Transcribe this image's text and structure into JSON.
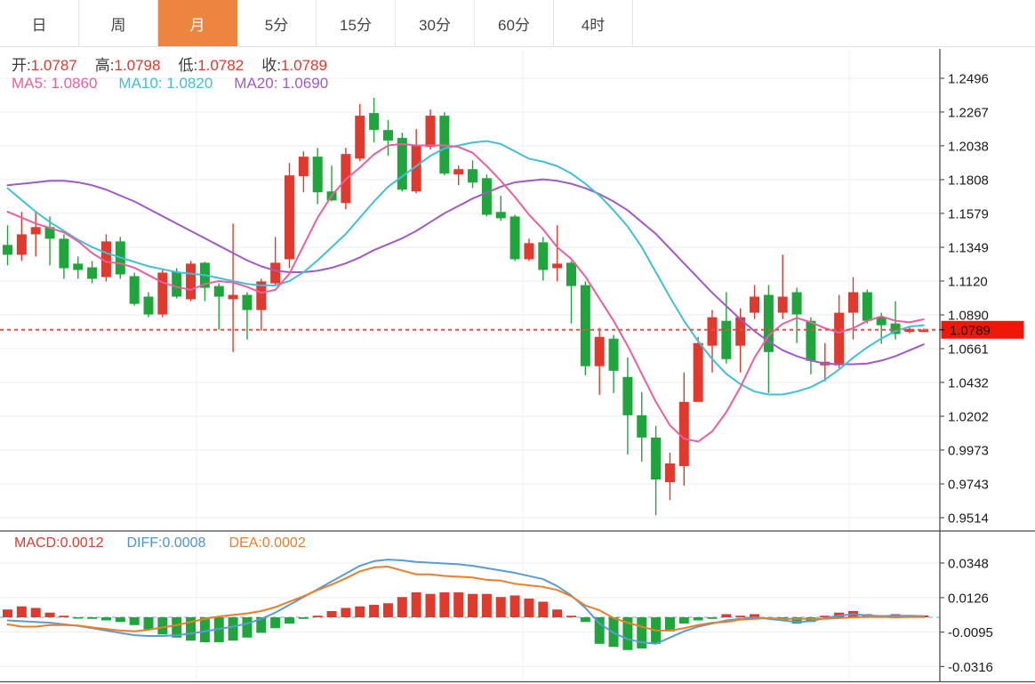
{
  "tabs": {
    "items": [
      {
        "key": "day",
        "label": "日",
        "active": false
      },
      {
        "key": "week",
        "label": "周",
        "active": false
      },
      {
        "key": "month",
        "label": "月",
        "active": true
      },
      {
        "key": "5min",
        "label": "5分",
        "active": false
      },
      {
        "key": "15min",
        "label": "15分",
        "active": false
      },
      {
        "key": "30min",
        "label": "30分",
        "active": false
      },
      {
        "key": "60min",
        "label": "60分",
        "active": false
      },
      {
        "key": "4hour",
        "label": "4时",
        "active": false
      }
    ]
  },
  "legend": {
    "open_label": "开:",
    "open_value": "1.0787",
    "high_label": "高:",
    "high_value": "1.0798",
    "low_label": "低:",
    "low_value": "1.0782",
    "close_label": "收:",
    "close_value": "1.0789",
    "ma5_label": "MA5:",
    "ma5_value": "1.0860",
    "ma10_label": "MA10:",
    "ma10_value": "1.0820",
    "ma20_label": "MA20:",
    "ma20_value": "1.0690"
  },
  "macd_legend": {
    "macd_label": "MACD:",
    "macd_value": "0.0012",
    "diff_label": "DIFF:",
    "diff_value": "0.0008",
    "dea_label": "DEA:",
    "dea_value": "0.0002"
  },
  "colors": {
    "up": "#e0392d",
    "down": "#1fa53c",
    "ma5": "#ec5f9d",
    "ma10": "#3fc0d8",
    "ma20": "#a15ac6",
    "diff": "#5b9bd5",
    "dea": "#ee7d28",
    "grid": "#e9eef5",
    "vgrid": "#eef1f6",
    "axis": "#474b52",
    "tick": "#555555",
    "label": "#1b1b1b",
    "price_dotted": "#ea5045",
    "zero_dashed": "#9dc3e6",
    "price_tag_bg": "#ee1808",
    "price_tag_text": "#111111",
    "tab_active_bg": "#ec8540"
  },
  "chart_data": {
    "type": "candlestick+macd",
    "title": "",
    "price_panel": {
      "ylim": [
        0.9514,
        1.2496
      ],
      "y_ticks": [
        "1.2496",
        "1.2267",
        "1.2038",
        "1.1808",
        "1.1579",
        "1.1349",
        "1.1120",
        "1.0890",
        "1.0661",
        "1.0432",
        "1.0202",
        "0.9973",
        "0.9743",
        "0.9514"
      ],
      "last_price": "1.0789",
      "grid": true,
      "legend_position": "top-left",
      "candles": [
        [
          1.1365,
          1.1498,
          1.1226,
          1.1298
        ],
        [
          1.1298,
          1.1589,
          1.1256,
          1.1437
        ],
        [
          1.1437,
          1.1589,
          1.1286,
          1.1486
        ],
        [
          1.1486,
          1.1558,
          1.1226,
          1.1407
        ],
        [
          1.1407,
          1.1437,
          1.1135,
          1.1207
        ],
        [
          1.1238,
          1.1286,
          1.1135,
          1.1195
        ],
        [
          1.1213,
          1.1256,
          1.1104,
          1.1135
        ],
        [
          1.1147,
          1.1437,
          1.1117,
          1.1389
        ],
        [
          1.1389,
          1.1419,
          1.1135,
          1.1165
        ],
        [
          1.1153,
          1.1177,
          1.0953,
          1.0965
        ],
        [
          1.1014,
          1.1044,
          1.0874,
          1.0893
        ],
        [
          1.0893,
          1.1195,
          1.0874,
          1.1177
        ],
        [
          1.1183,
          1.1207,
          1.1002,
          1.1014
        ],
        [
          1.0996,
          1.1256,
          1.0983,
          1.1238
        ],
        [
          1.1244,
          1.125,
          1.0983,
          1.1074
        ],
        [
          1.1086,
          1.1104,
          1.079,
          1.1014
        ],
        [
          1.0996,
          1.151,
          1.0638,
          1.1026
        ],
        [
          1.1026,
          1.1044,
          1.0723,
          1.0923
        ],
        [
          1.0923,
          1.1135,
          1.0784,
          1.1117
        ],
        [
          1.1104,
          1.1419,
          1.1092,
          1.1244
        ],
        [
          1.1268,
          1.1921,
          1.1207,
          1.1837
        ],
        [
          1.1831,
          1.2,
          1.1722,
          1.1964
        ],
        [
          1.1964,
          1.2024,
          1.1643,
          1.1722
        ],
        [
          1.1728,
          1.1903,
          1.1661,
          1.1667
        ],
        [
          1.1649,
          1.2024,
          1.1607,
          1.1982
        ],
        [
          1.1951,
          1.2321,
          1.1933,
          1.2242
        ],
        [
          1.226,
          1.2363,
          1.206,
          1.2145
        ],
        [
          1.2145,
          1.2212,
          1.197,
          1.2073
        ],
        [
          1.2091,
          1.2127,
          1.1728,
          1.174
        ],
        [
          1.1728,
          1.2151,
          1.1716,
          1.2042
        ],
        [
          1.203,
          1.2284,
          1.2012,
          1.2242
        ],
        [
          1.2242,
          1.2266,
          1.1837,
          1.1849
        ],
        [
          1.1843,
          1.1903,
          1.177,
          1.1879
        ],
        [
          1.1879,
          1.1939,
          1.1752,
          1.1788
        ],
        [
          1.1818,
          1.1843,
          1.1558,
          1.157
        ],
        [
          1.1589,
          1.1698,
          1.1528,
          1.1546
        ],
        [
          1.1558,
          1.157,
          1.1256,
          1.1268
        ],
        [
          1.1268,
          1.1407,
          1.1256,
          1.1377
        ],
        [
          1.1383,
          1.1419,
          1.1123,
          1.1195
        ],
        [
          1.1207,
          1.1498,
          1.1117,
          1.1238
        ],
        [
          1.1244,
          1.1256,
          1.0832,
          1.1086
        ],
        [
          1.1092,
          1.1117,
          1.0481,
          1.0542
        ],
        [
          1.0542,
          1.0802,
          1.0348,
          1.0741
        ],
        [
          1.0729,
          1.0754,
          1.036,
          1.0511
        ],
        [
          1.0469,
          1.0602,
          0.9943,
          1.0209
        ],
        [
          1.0209,
          1.0366,
          0.9894,
          1.0058
        ],
        [
          1.0058,
          1.0136,
          0.9531,
          0.9773
        ],
        [
          0.9755,
          0.9955,
          0.9634,
          0.9882
        ],
        [
          0.9864,
          1.0499,
          0.9731,
          1.03
        ],
        [
          1.03,
          1.0741,
          1.0336,
          1.0699
        ],
        [
          1.0681,
          1.0923,
          1.0499,
          1.0874
        ],
        [
          1.085,
          1.1044,
          1.056,
          1.059
        ],
        [
          1.0681,
          1.0935,
          1.0499,
          1.0874
        ],
        [
          1.0905,
          1.1092,
          1.0862,
          1.1014
        ],
        [
          1.1026,
          1.1092,
          1.036,
          1.0638
        ],
        [
          1.0905,
          1.1298,
          1.0862,
          1.1014
        ],
        [
          1.1044,
          1.1074,
          1.0699,
          1.0893
        ],
        [
          1.085,
          1.0874,
          1.0487,
          1.0578
        ],
        [
          1.0548,
          1.0699,
          1.0439,
          1.0572
        ],
        [
          1.0548,
          1.1026,
          1.053,
          1.0905
        ],
        [
          1.0905,
          1.1147,
          1.0723,
          1.1044
        ],
        [
          1.1044,
          1.1062,
          1.0832,
          1.085
        ],
        [
          1.0874,
          1.0905,
          1.0693,
          1.082
        ],
        [
          1.0832,
          1.0983,
          1.0723,
          1.076
        ],
        [
          1.0775,
          1.0814,
          1.0766,
          1.0795
        ],
        [
          1.0787,
          1.0798,
          1.0782,
          1.0789
        ]
      ],
      "ma5": [
        1.159,
        1.155,
        1.151,
        1.148,
        1.145,
        1.139,
        1.131,
        1.125,
        1.124,
        1.121,
        1.116,
        1.111,
        1.108,
        1.106,
        1.11,
        1.112,
        1.111,
        1.108,
        1.104,
        1.106,
        1.117,
        1.136,
        1.155,
        1.17,
        1.181,
        1.189,
        1.198,
        1.204,
        1.205,
        1.204,
        1.204,
        1.204,
        1.203,
        1.199,
        1.19,
        1.18,
        1.169,
        1.157,
        1.147,
        1.135,
        1.127,
        1.115,
        1.1,
        1.085,
        1.068,
        1.049,
        1.03,
        1.014,
        1.005,
        1.003,
        1.01,
        1.023,
        1.04,
        1.06,
        1.075,
        1.083,
        1.087,
        1.084,
        1.08,
        1.077,
        1.08,
        1.085,
        1.088,
        1.085,
        1.084,
        1.086
      ],
      "ma10": [
        1.175,
        1.167,
        1.159,
        1.152,
        1.146,
        1.14,
        1.135,
        1.131,
        1.128,
        1.125,
        1.122,
        1.12,
        1.118,
        1.117,
        1.116,
        1.114,
        1.112,
        1.11,
        1.109,
        1.109,
        1.112,
        1.118,
        1.126,
        1.135,
        1.144,
        1.155,
        1.166,
        1.176,
        1.183,
        1.19,
        1.197,
        1.202,
        1.204,
        1.206,
        1.207,
        1.205,
        1.2,
        1.195,
        1.193,
        1.19,
        1.185,
        1.178,
        1.17,
        1.16,
        1.149,
        1.135,
        1.118,
        1.101,
        1.085,
        1.071,
        1.059,
        1.049,
        1.042,
        1.037,
        1.035,
        1.035,
        1.037,
        1.04,
        1.045,
        1.052,
        1.06,
        1.067,
        1.073,
        1.078,
        1.081,
        1.082
      ],
      "ma20": [
        1.177,
        1.178,
        1.179,
        1.18,
        1.18,
        1.179,
        1.177,
        1.174,
        1.17,
        1.166,
        1.161,
        1.156,
        1.151,
        1.146,
        1.141,
        1.136,
        1.131,
        1.126,
        1.122,
        1.119,
        1.118,
        1.118,
        1.119,
        1.121,
        1.124,
        1.128,
        1.133,
        1.137,
        1.141,
        1.146,
        1.152,
        1.158,
        1.163,
        1.168,
        1.172,
        1.176,
        1.179,
        1.18,
        1.181,
        1.18,
        1.178,
        1.175,
        1.171,
        1.166,
        1.16,
        1.152,
        1.144,
        1.134,
        1.124,
        1.114,
        1.104,
        1.095,
        1.086,
        1.078,
        1.071,
        1.065,
        1.061,
        1.058,
        1.056,
        1.0555,
        1.0555,
        1.056,
        1.058,
        1.061,
        1.065,
        1.069
      ]
    },
    "macd_panel": {
      "y_ticks": [
        "0.0348",
        "0.0126",
        "-0.0095",
        "-0.0316"
      ],
      "grid": true,
      "hist": [
        0.005,
        0.007,
        0.006,
        0.003,
        0.001,
        -0.0005,
        -0.001,
        -0.002,
        -0.003,
        -0.005,
        -0.008,
        -0.011,
        -0.013,
        -0.015,
        -0.016,
        -0.016,
        -0.015,
        -0.013,
        -0.01,
        -0.007,
        -0.004,
        -0.001,
        0.001,
        0.004,
        0.006,
        0.007,
        0.008,
        0.009,
        0.013,
        0.016,
        0.015,
        0.016,
        0.016,
        0.015,
        0.015,
        0.013,
        0.014,
        0.012,
        0.01,
        0.005,
        0.001,
        -0.003,
        -0.017,
        -0.019,
        -0.021,
        -0.02,
        -0.017,
        -0.009,
        -0.004,
        -0.002,
        -0.001,
        0.002,
        0.001,
        0.002,
        -0.001,
        -0.002,
        -0.004,
        -0.003,
        0.001,
        0.003,
        0.004,
        0.002,
        0.001,
        0.002,
        0.0015,
        0.0012
      ],
      "diff": [
        -0.002,
        -0.0025,
        -0.003,
        -0.0035,
        -0.0045,
        -0.0055,
        -0.007,
        -0.0085,
        -0.01,
        -0.0115,
        -0.012,
        -0.012,
        -0.0115,
        -0.0105,
        -0.009,
        -0.0075,
        -0.006,
        -0.004,
        -0.001,
        0.003,
        0.008,
        0.013,
        0.018,
        0.023,
        0.028,
        0.033,
        0.036,
        0.037,
        0.0365,
        0.0355,
        0.035,
        0.0345,
        0.034,
        0.033,
        0.0315,
        0.03,
        0.0285,
        0.0265,
        0.0245,
        0.02,
        0.014,
        0.006,
        -0.004,
        -0.01,
        -0.014,
        -0.016,
        -0.017,
        -0.013,
        -0.009,
        -0.006,
        -0.004,
        -0.002,
        -0.001,
        0.0,
        -0.001,
        -0.002,
        -0.003,
        -0.0025,
        -0.0005,
        0.001,
        0.002,
        0.0012,
        0.0008,
        0.001,
        0.0009,
        0.0008
      ],
      "dea": [
        -0.0045,
        -0.006,
        -0.006,
        -0.005,
        -0.005,
        -0.0053,
        -0.0065,
        -0.0075,
        -0.0085,
        -0.009,
        -0.008,
        -0.0065,
        -0.005,
        -0.003,
        -0.001,
        0.0005,
        0.0015,
        0.0025,
        0.004,
        0.0065,
        0.01,
        0.0135,
        0.0175,
        0.021,
        0.025,
        0.0295,
        0.032,
        0.0325,
        0.03,
        0.0275,
        0.0275,
        0.0265,
        0.026,
        0.0255,
        0.024,
        0.0235,
        0.0215,
        0.0205,
        0.0195,
        0.0175,
        0.0135,
        0.0075,
        0.0045,
        -0.0005,
        -0.0035,
        -0.006,
        -0.0085,
        -0.0085,
        -0.007,
        -0.005,
        -0.0035,
        -0.003,
        -0.0015,
        -0.001,
        -0.0005,
        -0.001,
        -0.001,
        -0.001,
        -0.001,
        -0.0005,
        0.0,
        0.0002,
        0.0003,
        0.0,
        0.0002,
        0.0002
      ]
    }
  }
}
